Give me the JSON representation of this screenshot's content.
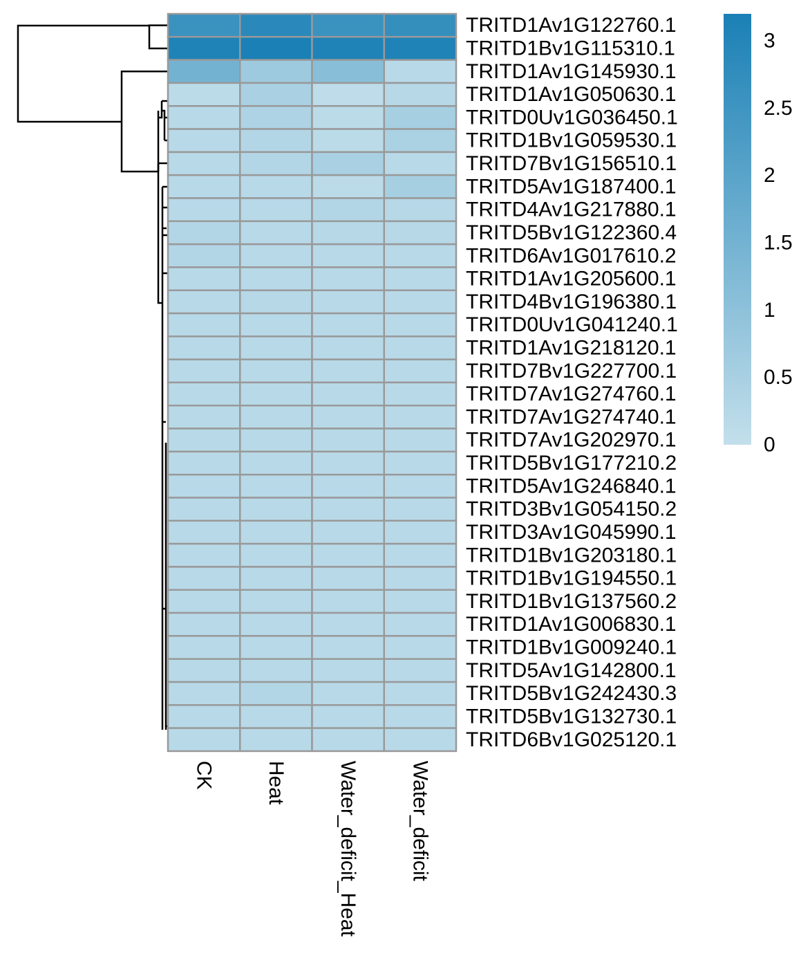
{
  "chart_data": {
    "type": "heatmap",
    "title": "",
    "xlabel": "",
    "ylabel": "",
    "columns": [
      "CK",
      "Heat",
      "Water_deficit_Heat",
      "Water_deficit"
    ],
    "rows": [
      "TRITD1Av1G122760.1",
      "TRITD1Bv1G115310.1",
      "TRITD1Av1G145930.1",
      "TRITD1Av1G050630.1",
      "TRITD0Uv1G036450.1",
      "TRITD1Bv1G059530.1",
      "TRITD7Bv1G156510.1",
      "TRITD5Av1G187400.1",
      "TRITD4Av1G217880.1",
      "TRITD5Bv1G122360.4",
      "TRITD6Av1G017610.2",
      "TRITD1Av1G205600.1",
      "TRITD4Bv1G196380.1",
      "TRITD0Uv1G041240.1",
      "TRITD1Av1G218120.1",
      "TRITD7Bv1G227700.1",
      "TRITD7Av1G274760.1",
      "TRITD7Av1G274740.1",
      "TRITD7Av1G202970.1",
      "TRITD5Bv1G177210.2",
      "TRITD5Av1G246840.1",
      "TRITD3Bv1G054150.2",
      "TRITD3Av1G045990.1",
      "TRITD1Bv1G203180.1",
      "TRITD1Bv1G194550.1",
      "TRITD1Bv1G137560.2",
      "TRITD1Av1G006830.1",
      "TRITD1Bv1G009240.1",
      "TRITD5Av1G142800.1",
      "TRITD5Bv1G242430.3",
      "TRITD5Bv1G132730.1",
      "TRITD6Bv1G025120.1"
    ],
    "values": [
      [
        2.6,
        2.9,
        2.6,
        2.7
      ],
      [
        3.1,
        3.2,
        3.1,
        3.1
      ],
      [
        1.5,
        0.7,
        1.1,
        0.2
      ],
      [
        0.15,
        0.5,
        0.1,
        0.25
      ],
      [
        0.2,
        0.4,
        0.15,
        0.55
      ],
      [
        0.2,
        0.3,
        0.15,
        0.45
      ],
      [
        0.2,
        0.3,
        0.5,
        0.2
      ],
      [
        0.2,
        0.2,
        0.15,
        0.55
      ],
      [
        0.2,
        0.2,
        0.3,
        0.25
      ],
      [
        0.3,
        0.2,
        0.25,
        0.25
      ],
      [
        0.3,
        0.2,
        0.2,
        0.2
      ],
      [
        0.2,
        0.2,
        0.2,
        0.2
      ],
      [
        0.2,
        0.25,
        0.2,
        0.2
      ],
      [
        0.2,
        0.2,
        0.2,
        0.2
      ],
      [
        0.2,
        0.2,
        0.2,
        0.2
      ],
      [
        0.2,
        0.2,
        0.2,
        0.2
      ],
      [
        0.2,
        0.2,
        0.2,
        0.2
      ],
      [
        0.2,
        0.2,
        0.2,
        0.2
      ],
      [
        0.2,
        0.2,
        0.2,
        0.2
      ],
      [
        0.2,
        0.2,
        0.2,
        0.2
      ],
      [
        0.2,
        0.2,
        0.2,
        0.2
      ],
      [
        0.2,
        0.2,
        0.2,
        0.2
      ],
      [
        0.2,
        0.2,
        0.2,
        0.2
      ],
      [
        0.2,
        0.2,
        0.2,
        0.2
      ],
      [
        0.2,
        0.2,
        0.2,
        0.2
      ],
      [
        0.2,
        0.2,
        0.2,
        0.2
      ],
      [
        0.2,
        0.2,
        0.2,
        0.2
      ],
      [
        0.2,
        0.2,
        0.2,
        0.2
      ],
      [
        0.2,
        0.2,
        0.2,
        0.2
      ],
      [
        0.2,
        0.3,
        0.2,
        0.2
      ],
      [
        0.2,
        0.2,
        0.2,
        0.2
      ],
      [
        0.2,
        0.2,
        0.2,
        0.2
      ]
    ],
    "color_scale": {
      "min": 0,
      "max": 3.2,
      "low_color": "#c3dfeb",
      "high_color": "#1a80b5",
      "ticks": [
        0,
        0.5,
        1,
        1.5,
        2,
        2.5,
        3
      ],
      "tick_labels": [
        "0",
        "0.5",
        "1",
        "1.5",
        "2",
        "2.5",
        "3"
      ]
    },
    "cell_border_color": "#999999",
    "row_dendrogram": true,
    "legend_position": "top-right"
  }
}
